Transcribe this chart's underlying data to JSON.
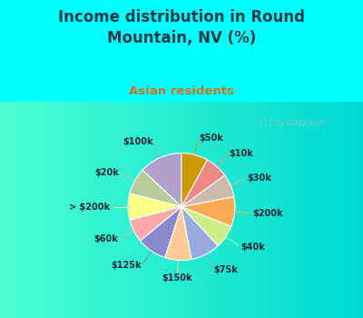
{
  "title": "Income distribution in Round\nMountain, NV (%)",
  "subtitle": "Asian residents",
  "title_color": "#1a3a4a",
  "subtitle_color": "#cc7722",
  "background_color": "#00ffff",
  "chart_bg_top": "#f0f8f0",
  "chart_bg_bottom": "#d0eee8",
  "watermark": "ⓘ City-Data.com",
  "labels": [
    "$100k",
    "$20k",
    "> $200k",
    "$60k",
    "$125k",
    "$150k",
    "$75k",
    "$40k",
    "$200k",
    "$30k",
    "$10k",
    "$50k"
  ],
  "values": [
    13,
    8,
    8,
    7,
    9,
    8,
    9,
    7,
    9,
    7,
    7,
    8
  ],
  "colors": [
    "#b0a0cc",
    "#b8cc9a",
    "#ffff88",
    "#ffaaaa",
    "#8888cc",
    "#ffcc99",
    "#99aadd",
    "#ccee88",
    "#ffaa55",
    "#ccbbaa",
    "#ee8888",
    "#cc9900"
  ],
  "line_colors": [
    "#b0a0cc",
    "#b8cc9a",
    "#ffff88",
    "#ffaaaa",
    "#8888cc",
    "#ffcc99",
    "#99aadd",
    "#ccee88",
    "#ffaa55",
    "#ccbbaa",
    "#ee8888",
    "#cc9900"
  ],
  "start_angle": 90,
  "figsize": [
    4.0,
    3.5
  ],
  "dpi": 100
}
